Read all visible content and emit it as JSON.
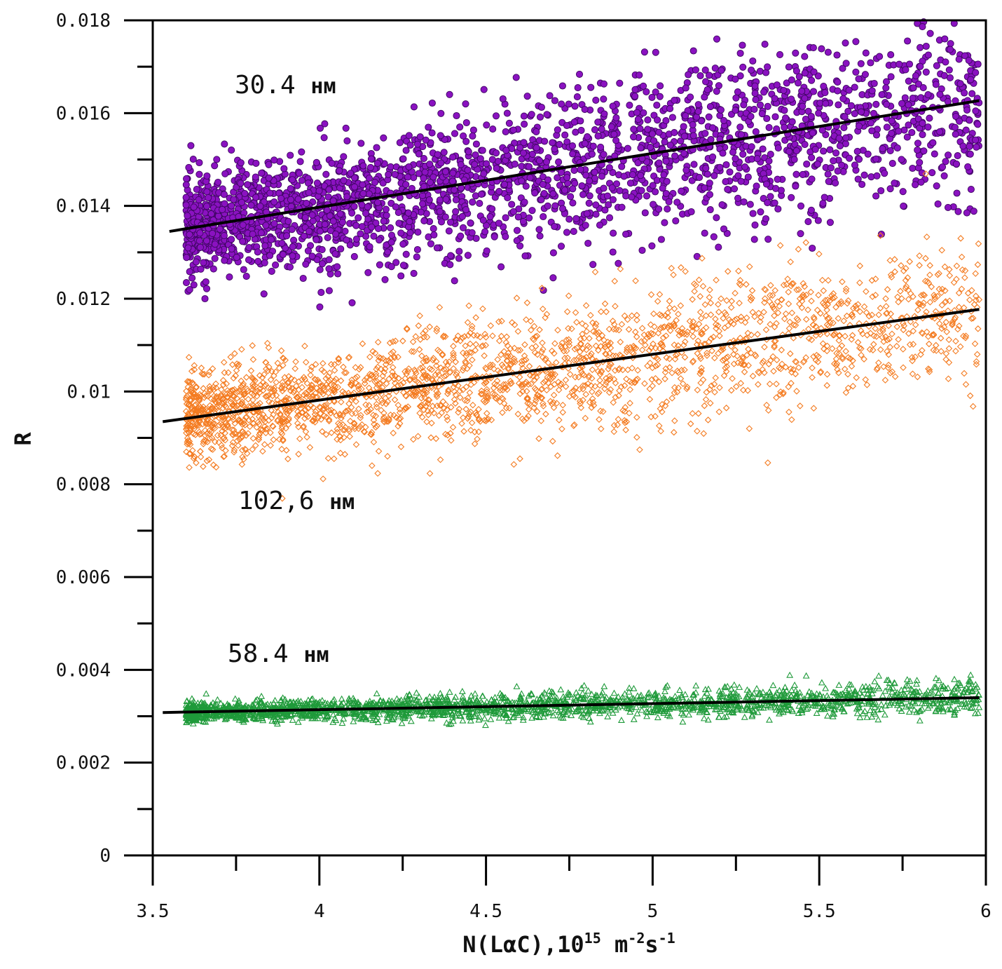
{
  "chart_data": {
    "type": "scatter",
    "title": "",
    "xlabel": {
      "main": "N(LαC),10",
      "exp": "15",
      "unit_m": " m",
      "unit_m_exp": "-2",
      "unit_s": "s",
      "unit_s_exp": "-1"
    },
    "ylabel": "R",
    "xlim": [
      3.5,
      6
    ],
    "ylim": [
      0,
      0.018
    ],
    "x_ticks": [
      "3.5",
      "4",
      "4.5",
      "5",
      "5.5",
      "6"
    ],
    "y_ticks": [
      "0",
      "0.002",
      "0.004",
      "0.006",
      "0.008",
      "0.01",
      "0.012",
      "0.014",
      "0.016",
      "0.018"
    ],
    "series": [
      {
        "name": "30.4 нм",
        "label_value": "30.4",
        "label_unit": "нм",
        "marker": "filled-circle",
        "color": "#8a12c0",
        "edge": "#3d0660",
        "fit": {
          "x": [
            3.55,
            5.98
          ],
          "y": [
            0.01345,
            0.01627
          ]
        },
        "x_range": [
          3.6,
          5.98
        ],
        "noise": 0.0011,
        "n_points": 2600
      },
      {
        "name": "102,6 нм",
        "label_value": "102,6",
        "label_unit": "нм",
        "marker": "open-diamond",
        "color": "#f47b20",
        "fit": {
          "x": [
            3.53,
            5.98
          ],
          "y": [
            0.00935,
            0.01177
          ]
        },
        "x_range": [
          3.6,
          5.98
        ],
        "noise": 0.0009,
        "n_points": 2400
      },
      {
        "name": "58.4 нм",
        "label_value": "58.4",
        "label_unit": "нм",
        "marker": "open-triangle",
        "color": "#1f9a3a",
        "fit": {
          "x": [
            3.53,
            5.98
          ],
          "y": [
            0.00308,
            0.0034
          ]
        },
        "x_range": [
          3.6,
          5.98
        ],
        "noise": 0.0002,
        "n_points": 2200
      }
    ]
  }
}
